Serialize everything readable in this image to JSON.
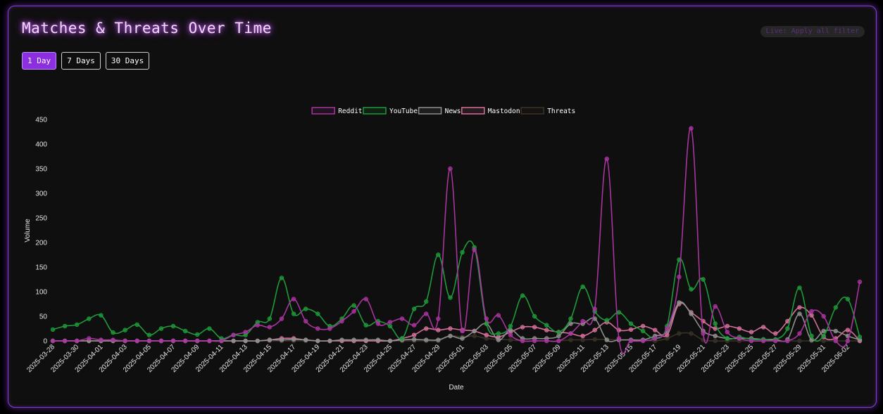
{
  "header": {
    "title": "Matches & Threats Over Time",
    "filter_label": "Live: Apply all filter"
  },
  "range_buttons": [
    {
      "label": "1 Day",
      "active": true
    },
    {
      "label": "7 Days",
      "active": false
    },
    {
      "label": "30 Days",
      "active": false
    }
  ],
  "colors": {
    "panel_border": "#8a3bd6",
    "accent": "#8b2fe0"
  },
  "chart_data": {
    "type": "line",
    "title": "Matches & Threats Over Time",
    "xlabel": "Date",
    "ylabel": "Volume",
    "ylim": [
      0,
      450
    ],
    "yticks": [
      0,
      50,
      100,
      150,
      200,
      250,
      300,
      350,
      400,
      450
    ],
    "grid": false,
    "legend_position": "top",
    "x": [
      "2025-03-28",
      "2025-03-29",
      "2025-03-30",
      "2025-03-31",
      "2025-04-01",
      "2025-04-02",
      "2025-04-03",
      "2025-04-04",
      "2025-04-05",
      "2025-04-06",
      "2025-04-07",
      "2025-04-08",
      "2025-04-09",
      "2025-04-10",
      "2025-04-11",
      "2025-04-12",
      "2025-04-13",
      "2025-04-14",
      "2025-04-15",
      "2025-04-16",
      "2025-04-17",
      "2025-04-18",
      "2025-04-19",
      "2025-04-20",
      "2025-04-21",
      "2025-04-22",
      "2025-04-23",
      "2025-04-24",
      "2025-04-25",
      "2025-04-26",
      "2025-04-27",
      "2025-04-28",
      "2025-04-29",
      "2025-04-30",
      "2025-05-01",
      "2025-05-02",
      "2025-05-03",
      "2025-05-04",
      "2025-05-05",
      "2025-05-06",
      "2025-05-07",
      "2025-05-08",
      "2025-05-09",
      "2025-05-10",
      "2025-05-11",
      "2025-05-12",
      "2025-05-13",
      "2025-05-14",
      "2025-05-15",
      "2025-05-16",
      "2025-05-17",
      "2025-05-18",
      "2025-05-19",
      "2025-05-20",
      "2025-05-21",
      "2025-05-22",
      "2025-05-23",
      "2025-05-24",
      "2025-05-25",
      "2025-05-26",
      "2025-05-27",
      "2025-05-28",
      "2025-05-29",
      "2025-05-30",
      "2025-05-31",
      "2025-06-01",
      "2025-06-02",
      "2025-06-03"
    ],
    "xtick_labels": [
      "2025-03-28",
      "2025-03-30",
      "2025-04-01",
      "2025-04-03",
      "2025-04-05",
      "2025-04-07",
      "2025-04-09",
      "2025-04-11",
      "2025-04-13",
      "2025-04-15",
      "2025-04-17",
      "2025-04-19",
      "2025-04-21",
      "2025-04-23",
      "2025-04-25",
      "2025-04-27",
      "2025-04-29",
      "2025-05-01",
      "2025-05-03",
      "2025-05-05",
      "2025-05-07",
      "2025-05-09",
      "2025-05-11",
      "2025-05-13",
      "2025-05-15",
      "2025-05-17",
      "2025-05-19",
      "2025-05-21",
      "2025-05-23",
      "2025-05-25",
      "2025-05-27",
      "2025-05-29",
      "2025-05-31",
      "2025-06-02"
    ],
    "series": [
      {
        "name": "Reddit",
        "color": "#a8349e",
        "values": [
          0,
          0,
          0,
          5,
          2,
          2,
          0,
          0,
          0,
          0,
          0,
          0,
          0,
          0,
          0,
          12,
          18,
          32,
          28,
          45,
          85,
          40,
          25,
          25,
          40,
          60,
          85,
          35,
          38,
          45,
          32,
          55,
          45,
          350,
          20,
          185,
          45,
          52,
          12,
          0,
          0,
          0,
          0,
          15,
          40,
          65,
          370,
          5,
          0,
          0,
          5,
          25,
          130,
          432,
          15,
          70,
          18,
          5,
          0,
          0,
          0,
          0,
          15,
          60,
          50,
          0,
          0,
          120
        ]
      },
      {
        "name": "YouTube",
        "color": "#1e9a3a",
        "values": [
          23,
          30,
          33,
          45,
          52,
          17,
          22,
          33,
          12,
          25,
          30,
          20,
          13,
          25,
          5,
          12,
          12,
          38,
          45,
          128,
          55,
          65,
          55,
          30,
          45,
          72,
          32,
          40,
          30,
          5,
          65,
          80,
          175,
          88,
          180,
          190,
          35,
          15,
          30,
          92,
          50,
          32,
          18,
          45,
          110,
          60,
          42,
          58,
          35,
          20,
          5,
          30,
          165,
          105,
          125,
          35,
          5,
          8,
          3,
          3,
          3,
          25,
          108,
          10,
          10,
          68,
          85,
          8
        ]
      },
      {
        "name": "News",
        "color": "#8f8f8f",
        "values": [
          0,
          0,
          0,
          0,
          0,
          0,
          0,
          0,
          0,
          0,
          0,
          0,
          0,
          0,
          0,
          0,
          0,
          0,
          2,
          2,
          3,
          2,
          0,
          0,
          2,
          2,
          2,
          2,
          0,
          2,
          3,
          2,
          2,
          10,
          5,
          20,
          35,
          2,
          22,
          5,
          5,
          5,
          10,
          35,
          35,
          45,
          2,
          2,
          2,
          2,
          10,
          20,
          78,
          55,
          20,
          10,
          5,
          5,
          5,
          3,
          3,
          3,
          55,
          2,
          20,
          20,
          10,
          2
        ]
      },
      {
        "name": "Mastodon",
        "color": "#d4709a",
        "values": [
          0,
          0,
          0,
          0,
          0,
          0,
          0,
          0,
          0,
          0,
          0,
          0,
          0,
          0,
          0,
          0,
          0,
          0,
          2,
          5,
          5,
          2,
          0,
          0,
          0,
          0,
          0,
          0,
          0,
          5,
          12,
          25,
          22,
          25,
          22,
          20,
          12,
          8,
          18,
          28,
          28,
          22,
          18,
          15,
          10,
          22,
          38,
          22,
          23,
          30,
          22,
          12,
          75,
          58,
          40,
          25,
          30,
          25,
          18,
          28,
          15,
          40,
          68,
          52,
          8,
          5,
          22,
          0
        ]
      },
      {
        "name": "Threats",
        "color": "#3a3225",
        "values": [
          0,
          0,
          0,
          0,
          0,
          0,
          0,
          0,
          0,
          0,
          0,
          0,
          0,
          0,
          0,
          0,
          0,
          0,
          0,
          0,
          0,
          0,
          0,
          0,
          0,
          0,
          0,
          0,
          0,
          0,
          0,
          0,
          0,
          10,
          8,
          10,
          5,
          3,
          2,
          0,
          0,
          0,
          0,
          2,
          2,
          3,
          3,
          2,
          2,
          2,
          0,
          5,
          15,
          15,
          2,
          0,
          0,
          0,
          0,
          0,
          0,
          0,
          0,
          0,
          0,
          0,
          0,
          0
        ]
      }
    ]
  }
}
